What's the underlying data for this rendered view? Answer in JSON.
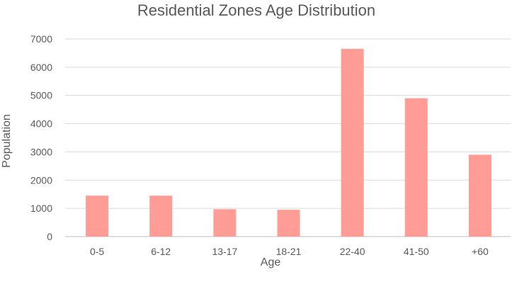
{
  "chart_data": {
    "type": "bar",
    "title": "Residential Zones Age Distribution",
    "xlabel": "Age",
    "ylabel": "Population",
    "categories": [
      "0-5",
      "6-12",
      "13-17",
      "18-21",
      "22-40",
      "41-50",
      "+60"
    ],
    "values": [
      1450,
      1450,
      970,
      950,
      6650,
      4900,
      2900
    ],
    "ylim": [
      0,
      7000
    ],
    "yticks": [
      0,
      1000,
      2000,
      3000,
      4000,
      5000,
      6000,
      7000
    ],
    "grid": true,
    "legend": "none",
    "bar_color": "#ff9c95"
  }
}
